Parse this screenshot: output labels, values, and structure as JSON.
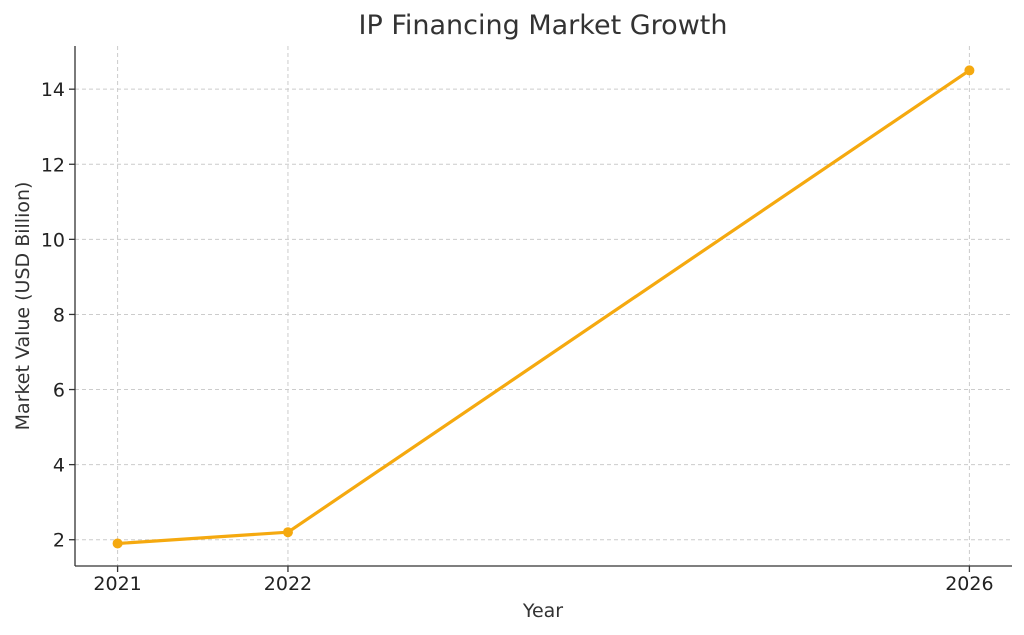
{
  "chart_data": {
    "type": "line",
    "title": "IP Financing Market Growth",
    "xlabel": "Year",
    "ylabel": "Market Value (USD Billion)",
    "x": [
      2021,
      2022,
      2026
    ],
    "x_tick_labels": [
      "2021",
      "2022",
      "2026"
    ],
    "xlim": [
      2020.75,
      2026.25
    ],
    "ylim": [
      1.3,
      15.15
    ],
    "y_ticks": [
      2,
      4,
      6,
      8,
      10,
      12,
      14
    ],
    "y_tick_labels": [
      "2",
      "4",
      "6",
      "8",
      "10",
      "12",
      "14"
    ],
    "grid": true,
    "series": [
      {
        "values": [
          1.9,
          2.2,
          14.5
        ],
        "color": "#f5a90f"
      }
    ]
  }
}
